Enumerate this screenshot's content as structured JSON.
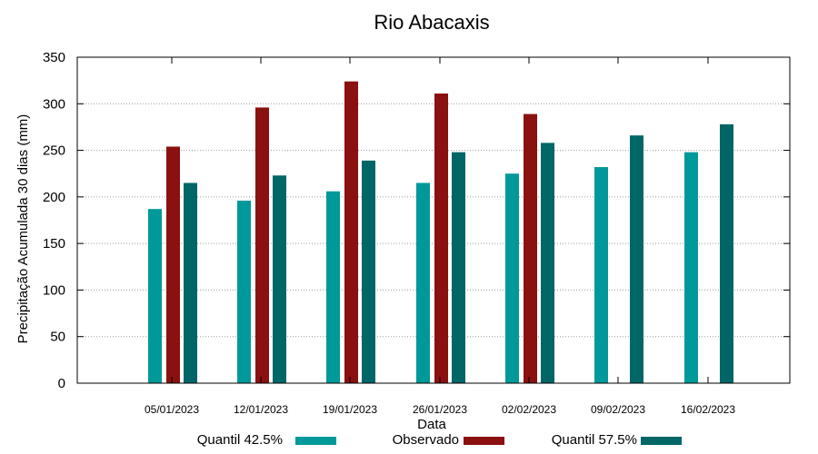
{
  "chart_data": {
    "type": "bar",
    "title": "Rio Abacaxis",
    "xlabel": "Data",
    "ylabel": "Precipitação Acumulada 30 dias (mm)",
    "ylim": [
      0,
      350
    ],
    "yticks": [
      0,
      50,
      100,
      150,
      200,
      250,
      300,
      350
    ],
    "grid": true,
    "legend_position": "bottom",
    "categories": [
      "05/01/2023",
      "12/01/2023",
      "19/01/2023",
      "26/01/2023",
      "02/02/2023",
      "09/02/2023",
      "16/02/2023"
    ],
    "series": [
      {
        "name": "Quantil 42.5%",
        "color": "#009999",
        "values": [
          187,
          196,
          206,
          215,
          225,
          232,
          248
        ]
      },
      {
        "name": "Observado",
        "color": "#8b1010",
        "values": [
          254,
          296,
          324,
          311,
          289,
          null,
          null
        ]
      },
      {
        "name": "Quantil 57.5%",
        "color": "#006666",
        "values": [
          215,
          223,
          239,
          248,
          258,
          266,
          278
        ]
      }
    ]
  }
}
